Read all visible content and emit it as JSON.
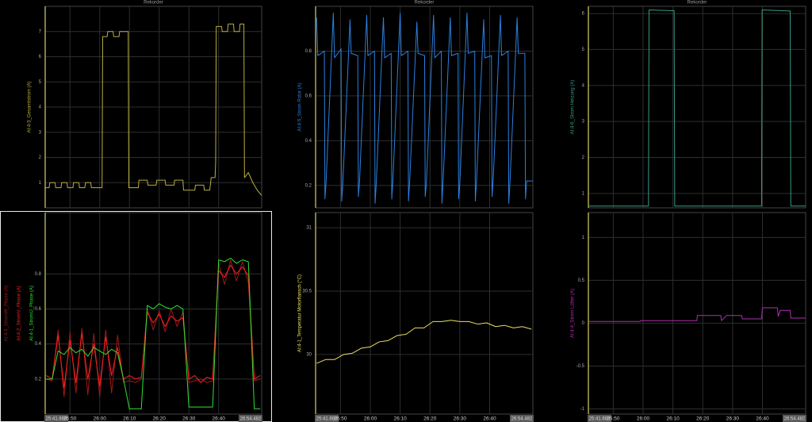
{
  "chart_data": [
    {
      "type": "line",
      "title": "Rekorder",
      "x": [
        1541.7,
        1543,
        1543.2,
        1545,
        1545.2,
        1547,
        1547.2,
        1549,
        1549.2,
        1551,
        1551.2,
        1553,
        1553.2,
        1555,
        1555.2,
        1557,
        1557.2,
        1560.8,
        1561,
        1562.5,
        1562.7,
        1564.5,
        1564.7,
        1566.5,
        1566.7,
        1569.6,
        1569.8,
        1573,
        1573.2,
        1576,
        1576.2,
        1579,
        1579.2,
        1582,
        1582.2,
        1585,
        1585.2,
        1588,
        1588.2,
        1592,
        1592.2,
        1595,
        1595.2,
        1597,
        1597.5,
        1598.8,
        1599,
        1599.2,
        1601,
        1601.2,
        1603,
        1603.2,
        1605,
        1605.2,
        1607,
        1607.2,
        1608.5,
        1608.7,
        1610,
        1611.5,
        1613,
        1614.4
      ],
      "series": [
        {
          "name": "AI:4-3_Gesamtstrom (A)",
          "color": "#b8b040",
          "values": [
            0.8,
            0.8,
            1.0,
            1.0,
            0.8,
            0.8,
            1.0,
            1.0,
            0.8,
            0.8,
            1.0,
            1.0,
            0.8,
            0.8,
            1.0,
            1.0,
            0.8,
            0.8,
            6.8,
            6.8,
            7.0,
            7.0,
            6.8,
            6.8,
            7.0,
            7.0,
            0.8,
            0.8,
            1.1,
            1.1,
            0.9,
            0.9,
            1.1,
            1.1,
            0.9,
            0.9,
            1.1,
            1.1,
            0.7,
            0.7,
            0.9,
            0.9,
            0.7,
            0.7,
            1.2,
            1.2,
            1.8,
            7.2,
            7.2,
            7.0,
            7.0,
            7.3,
            7.3,
            7.0,
            7.0,
            7.3,
            7.3,
            1.2,
            1.4,
            1.0,
            0.7,
            0.5
          ]
        }
      ],
      "xlim": [
        1541.668,
        1614.482
      ],
      "ylim": [
        0,
        8
      ],
      "yticks": [
        1,
        2,
        3,
        4,
        5,
        6,
        7
      ],
      "grid": true
    },
    {
      "type": "line",
      "x": [
        1542,
        1544,
        1546,
        1548,
        1550,
        1552,
        1554,
        1556,
        1558,
        1560,
        1562,
        1564,
        1566,
        1568,
        1570,
        1572,
        1574,
        1576,
        1578,
        1580,
        1582,
        1584,
        1586,
        1588,
        1590,
        1592,
        1594,
        1596,
        1598,
        1600,
        1602,
        1604,
        1606,
        1608,
        1610,
        1612,
        1614
      ],
      "series": [
        {
          "name": "AI:4-3_StromW_Phase (A)",
          "color": "#a01818",
          "values": [
            0.2,
            0.19,
            0.48,
            0.1,
            0.47,
            0.12,
            0.49,
            0.11,
            0.46,
            0.1,
            0.48,
            0.12,
            0.45,
            0.18,
            0.19,
            0.18,
            0.2,
            0.6,
            0.48,
            0.59,
            0.47,
            0.6,
            0.5,
            0.58,
            0.18,
            0.19,
            0.2,
            0.18,
            0.19,
            0.86,
            0.74,
            0.88,
            0.76,
            0.87,
            0.75,
            0.19,
            0.2
          ]
        },
        {
          "name": "AI:4-2_StromV_Phase (A)",
          "color": "#ff2020",
          "values": [
            0.22,
            0.2,
            0.45,
            0.15,
            0.42,
            0.18,
            0.46,
            0.2,
            0.4,
            0.16,
            0.44,
            0.22,
            0.38,
            0.2,
            0.22,
            0.2,
            0.21,
            0.58,
            0.52,
            0.57,
            0.5,
            0.56,
            0.53,
            0.55,
            0.2,
            0.22,
            0.18,
            0.21,
            0.2,
            0.82,
            0.78,
            0.85,
            0.8,
            0.84,
            0.79,
            0.2,
            0.22
          ]
        },
        {
          "name": "AI:4-1_StromU_Phase (A)",
          "color": "#30e030",
          "values": [
            0.2,
            0.2,
            0.36,
            0.34,
            0.38,
            0.35,
            0.37,
            0.33,
            0.38,
            0.36,
            0.34,
            0.37,
            0.35,
            0.2,
            0.03,
            0.03,
            0.03,
            0.62,
            0.6,
            0.63,
            0.61,
            0.6,
            0.62,
            0.6,
            0.04,
            0.04,
            0.04,
            0.04,
            0.04,
            0.88,
            0.87,
            0.89,
            0.86,
            0.88,
            0.87,
            0.03,
            0.03
          ]
        }
      ],
      "xlim": [
        1541.668,
        1614.482
      ],
      "ylim": [
        0,
        1.15
      ],
      "yticks": [
        0.2,
        0.4,
        0.6,
        0.8
      ],
      "xticks": [
        {
          "value": 1541.668,
          "label": "25:41.668"
        },
        {
          "value": 1550,
          "label": "25:50"
        },
        {
          "value": 1560,
          "label": "26:00"
        },
        {
          "value": 1570,
          "label": "26:10"
        },
        {
          "value": 1580,
          "label": "26:20"
        },
        {
          "value": 1590,
          "label": "26:30"
        },
        {
          "value": 1600,
          "label": "26:40"
        },
        {
          "value": 1614.482,
          "label": "26:54.482"
        }
      ],
      "grid": true
    },
    {
      "type": "line",
      "title": "Rekorder",
      "x": [
        1542,
        1542.4,
        1544.6,
        1544.8,
        1545.2,
        1547.6,
        1548,
        1550.2,
        1550.4,
        1550.8,
        1553.2,
        1553.6,
        1555.8,
        1556,
        1556.4,
        1558.8,
        1559.2,
        1561.4,
        1561.6,
        1562,
        1564.4,
        1564.8,
        1567,
        1567.2,
        1567.6,
        1570,
        1570.4,
        1572.6,
        1572.8,
        1573.2,
        1575.6,
        1576,
        1578.2,
        1578.4,
        1578.8,
        1581.2,
        1581.6,
        1583.8,
        1584,
        1584.4,
        1586.8,
        1587.2,
        1589.4,
        1589.6,
        1590,
        1592.4,
        1592.8,
        1595,
        1595.2,
        1595.6,
        1598,
        1598.4,
        1600.6,
        1600.8,
        1601.2,
        1603.6,
        1604,
        1606.2,
        1606.4,
        1606.8,
        1609.2,
        1609.6,
        1611.8,
        1612,
        1612.4,
        1614.4
      ],
      "series": [
        {
          "name": "AI:4-5_Strom Rotor (A)",
          "color": "#2a80e0",
          "values": [
            0.95,
            0.78,
            0.8,
            0.14,
            0.22,
            0.97,
            0.77,
            0.81,
            0.13,
            0.21,
            0.94,
            0.79,
            0.78,
            0.15,
            0.22,
            0.96,
            0.78,
            0.8,
            0.12,
            0.21,
            0.95,
            0.77,
            0.79,
            0.14,
            0.23,
            0.97,
            0.78,
            0.8,
            0.13,
            0.22,
            0.93,
            0.79,
            0.78,
            0.15,
            0.21,
            0.96,
            0.77,
            0.8,
            0.12,
            0.22,
            0.95,
            0.78,
            0.79,
            0.14,
            0.21,
            0.97,
            0.79,
            0.8,
            0.13,
            0.22,
            0.94,
            0.77,
            0.78,
            0.15,
            0.23,
            0.96,
            0.78,
            0.8,
            0.12,
            0.21,
            0.95,
            0.79,
            0.79,
            0.14,
            0.22,
            0.22
          ]
        }
      ],
      "xlim": [
        1541.668,
        1614.482
      ],
      "ylim": [
        0.1,
        1.0
      ],
      "yticks": [
        0.2,
        0.4,
        0.6,
        0.8
      ],
      "grid": true
    },
    {
      "type": "line",
      "x": [
        1542,
        1545,
        1548,
        1551,
        1554,
        1557,
        1560,
        1563,
        1566,
        1569,
        1572,
        1575,
        1578,
        1581,
        1584,
        1587,
        1590,
        1593,
        1596,
        1599,
        1602,
        1605,
        1608,
        1611,
        1614
      ],
      "series": [
        {
          "name": "AI:4-1_Temperatur Motorflansch (°C)",
          "color": "#e8e060",
          "values": [
            29.93,
            29.96,
            29.96,
            30.0,
            30.01,
            30.05,
            30.06,
            30.1,
            30.11,
            30.15,
            30.16,
            30.21,
            30.21,
            30.26,
            30.26,
            30.27,
            30.26,
            30.26,
            30.24,
            30.25,
            30.22,
            30.23,
            30.21,
            30.22,
            30.2
          ]
        }
      ],
      "xlim": [
        1541.668,
        1614.482
      ],
      "ylim": [
        29.53,
        31.12
      ],
      "yticks": [
        30,
        30.5,
        31
      ],
      "xticks": [
        {
          "value": 1541.668,
          "label": "25:41.668"
        },
        {
          "value": 1550,
          "label": "25:50"
        },
        {
          "value": 1560,
          "label": "26:00"
        },
        {
          "value": 1570,
          "label": "26:10"
        },
        {
          "value": 1580,
          "label": "26:20"
        },
        {
          "value": 1590,
          "label": "26:30"
        },
        {
          "value": 1600,
          "label": "26:40"
        },
        {
          "value": 1614.482,
          "label": "26:54.482"
        }
      ],
      "grid": true
    },
    {
      "type": "line",
      "title": "Rekorder",
      "x": [
        1541.7,
        1561.8,
        1562,
        1570.4,
        1570.6,
        1599.7,
        1599.9,
        1609.3,
        1609.5,
        1614.4
      ],
      "series": [
        {
          "name": "AI:4-6_Strom Heizung (A)",
          "color": "#3a9a86",
          "values": [
            0.65,
            0.65,
            6.1,
            6.08,
            0.65,
            0.65,
            6.1,
            6.07,
            0.65,
            0.65
          ]
        }
      ],
      "xlim": [
        1541.668,
        1614.482
      ],
      "ylim": [
        0.6,
        6.2
      ],
      "yticks": [
        1,
        2,
        3,
        4,
        5,
        6
      ],
      "grid": true
    },
    {
      "type": "line",
      "x": [
        1541.7,
        1559,
        1559.2,
        1578,
        1578.2,
        1586,
        1586.3,
        1588,
        1592,
        1593,
        1593.3,
        1599.7,
        1600,
        1605,
        1605.3,
        1606,
        1606.3,
        1609.3,
        1609.5,
        1614.4
      ],
      "series": [
        {
          "name": "AI:4-4_Strom Lüfter (A)",
          "color": "#b030b0",
          "values": [
            0.02,
            0.02,
            0.03,
            0.03,
            0.09,
            0.09,
            0.03,
            0.09,
            0.09,
            0.09,
            0.05,
            0.05,
            0.18,
            0.18,
            0.08,
            0.15,
            0.15,
            0.15,
            0.06,
            0.06
          ]
        }
      ],
      "xlim": [
        1541.668,
        1614.482
      ],
      "ylim": [
        -1.06,
        1.29
      ],
      "yticks": [
        -1,
        -0.5,
        0,
        0.5,
        1
      ],
      "xticks": [
        {
          "value": 1541.668,
          "label": "25:41.668"
        },
        {
          "value": 1550,
          "label": "25:50"
        },
        {
          "value": 1560,
          "label": "26:00"
        },
        {
          "value": 1570,
          "label": "26:10"
        },
        {
          "value": 1580,
          "label": "26:20"
        },
        {
          "value": 1590,
          "label": "26:30"
        },
        {
          "value": 1600,
          "label": "26:40"
        },
        {
          "value": 1614.482,
          "label": "26:54.482"
        }
      ],
      "grid": true
    }
  ]
}
